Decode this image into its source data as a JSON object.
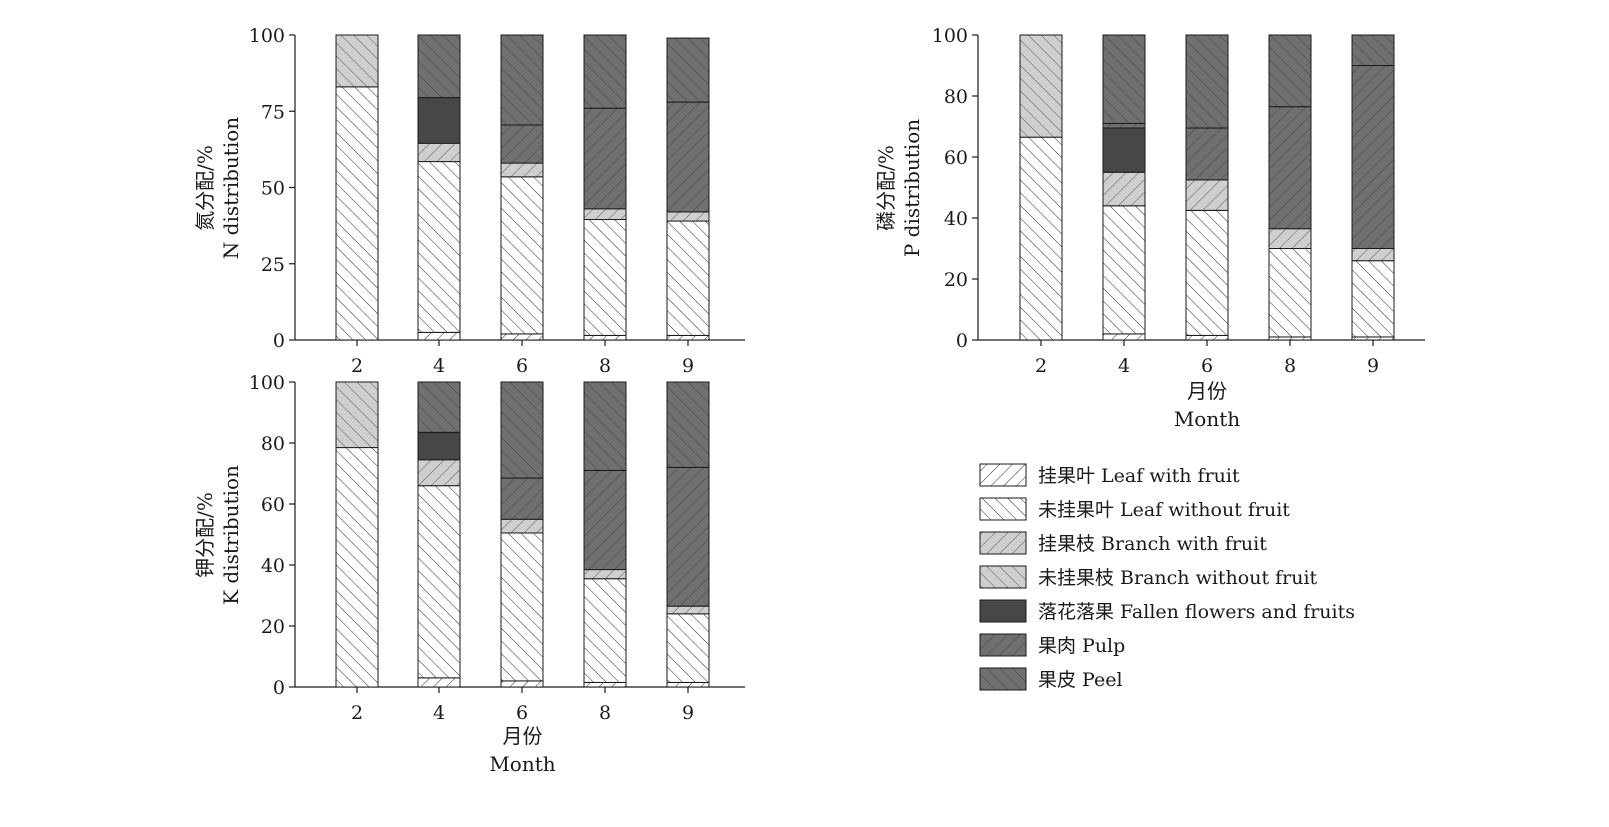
{
  "chart_data": [
    {
      "type": "bar",
      "stacked": true,
      "categories": [
        "2",
        "4",
        "6",
        "8",
        "9"
      ],
      "ylabel_cn": "氮分配/%",
      "ylabel_en": "N distribution",
      "xlabel_cn": "",
      "xlabel_en": "",
      "ylim": [
        0,
        100
      ],
      "yticks": [
        "0",
        "25",
        "50",
        "75",
        "100"
      ],
      "series": [
        {
          "values": [
            0,
            2.5,
            2,
            1.5,
            1.5
          ]
        },
        {
          "values": [
            83,
            56,
            51.5,
            38,
            37.5
          ]
        },
        {
          "values": [
            0,
            6,
            4.5,
            3.5,
            3
          ]
        },
        {
          "values": [
            17,
            0,
            0,
            0,
            0
          ]
        },
        {
          "values": [
            0,
            15,
            0,
            0,
            0
          ]
        },
        {
          "values": [
            0,
            0,
            12.5,
            33,
            36
          ]
        },
        {
          "values": [
            0,
            20.5,
            29.5,
            24,
            21
          ]
        }
      ]
    },
    {
      "type": "bar",
      "stacked": true,
      "categories": [
        "2",
        "4",
        "6",
        "8",
        "9"
      ],
      "ylabel_cn": "磷分配/%",
      "ylabel_en": "P distribution",
      "xlabel_cn": "月份",
      "xlabel_en": "Month",
      "ylim": [
        0,
        100
      ],
      "yticks": [
        "0",
        "20",
        "40",
        "60",
        "80",
        "100"
      ],
      "series": [
        {
          "values": [
            0,
            2,
            1.5,
            1,
            1
          ]
        },
        {
          "values": [
            66.5,
            42,
            41,
            29,
            25
          ]
        },
        {
          "values": [
            0,
            11,
            10,
            6.5,
            4
          ]
        },
        {
          "values": [
            33.5,
            0,
            0,
            0,
            0
          ]
        },
        {
          "values": [
            0,
            14.5,
            0,
            0,
            0
          ]
        },
        {
          "values": [
            0,
            1.5,
            17,
            40,
            60
          ]
        },
        {
          "values": [
            0,
            29,
            30.5,
            23.5,
            10
          ]
        }
      ]
    },
    {
      "type": "bar",
      "stacked": true,
      "categories": [
        "2",
        "4",
        "6",
        "8",
        "9"
      ],
      "ylabel_cn": "钾分配/%",
      "ylabel_en": "K distribution",
      "xlabel_cn": "月份",
      "xlabel_en": "Month",
      "ylim": [
        0,
        100
      ],
      "yticks": [
        "0",
        "20",
        "40",
        "60",
        "80",
        "100"
      ],
      "series": [
        {
          "values": [
            0,
            3,
            2,
            1.5,
            1.5
          ]
        },
        {
          "values": [
            78.5,
            63,
            48.5,
            34,
            22.5
          ]
        },
        {
          "values": [
            0,
            8.5,
            4.5,
            3,
            2.5
          ]
        },
        {
          "values": [
            21.5,
            0,
            0,
            0,
            0
          ]
        },
        {
          "values": [
            0,
            9,
            0,
            0,
            0
          ]
        },
        {
          "values": [
            0,
            0,
            13.5,
            32.5,
            45.5
          ]
        },
        {
          "values": [
            0,
            16.5,
            31.5,
            29,
            28
          ]
        }
      ]
    }
  ],
  "legend": {
    "placement": "bottom-right",
    "items": [
      {
        "label": "挂果叶 Leaf with fruit",
        "color": "#ffffff",
        "pattern": "fwd"
      },
      {
        "label": "未挂果叶 Leaf without fruit",
        "color": "#ffffff",
        "pattern": "back"
      },
      {
        "label": "挂果枝 Branch with fruit",
        "color": "#cfcfcf",
        "pattern": "fwd"
      },
      {
        "label": "未挂果枝 Branch without fruit",
        "color": "#cfcfcf",
        "pattern": "back"
      },
      {
        "label": "落花落果 Fallen flowers and fruits",
        "color": "#474747",
        "pattern": "none"
      },
      {
        "label": "果肉 Pulp",
        "color": "#707070",
        "pattern": "fwd"
      },
      {
        "label": "果皮 Peel",
        "color": "#707070",
        "pattern": "back"
      }
    ]
  }
}
